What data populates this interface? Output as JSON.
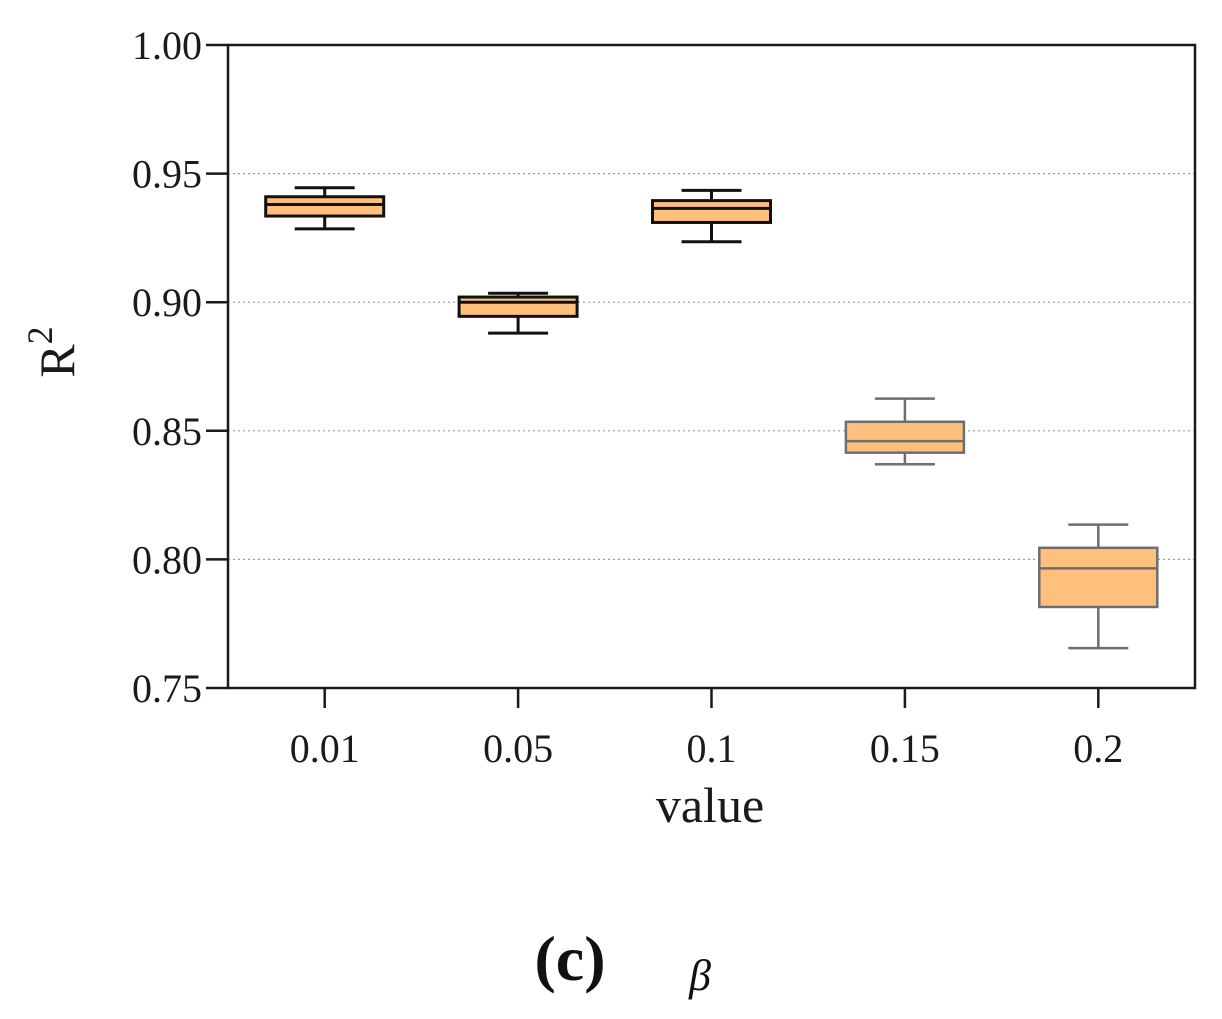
{
  "chart_data": {
    "type": "box",
    "title": "",
    "xlabel": "value",
    "ylabel": "R",
    "ylabel_superscript": "2",
    "categories": [
      "0.01",
      "0.05",
      "0.1",
      "0.15",
      "0.2"
    ],
    "ylim": [
      0.75,
      1.0
    ],
    "yticks": [
      0.75,
      0.8,
      0.85,
      0.9,
      0.95,
      1.0
    ],
    "ytick_labels": [
      "0.75",
      "0.80",
      "0.85",
      "0.90",
      "0.95",
      "1.00"
    ],
    "grid": "horizontal-dotted",
    "boxes": [
      {
        "category": "0.01",
        "min": 0.9285,
        "q1": 0.9335,
        "median": 0.938,
        "q3": 0.941,
        "max": 0.9445
      },
      {
        "category": "0.05",
        "min": 0.888,
        "q1": 0.8945,
        "median": 0.9,
        "q3": 0.902,
        "max": 0.9035
      },
      {
        "category": "0.1",
        "min": 0.9235,
        "q1": 0.931,
        "median": 0.9365,
        "q3": 0.9395,
        "max": 0.9435
      },
      {
        "category": "0.15",
        "min": 0.837,
        "q1": 0.8415,
        "median": 0.846,
        "q3": 0.8535,
        "max": 0.8625
      },
      {
        "category": "0.2",
        "min": 0.7655,
        "q1": 0.7815,
        "median": 0.7965,
        "q3": 0.8045,
        "max": 0.8135
      }
    ],
    "box_fill": "#ffc07e",
    "caption_label": "(c)",
    "caption_symbol": "β"
  }
}
